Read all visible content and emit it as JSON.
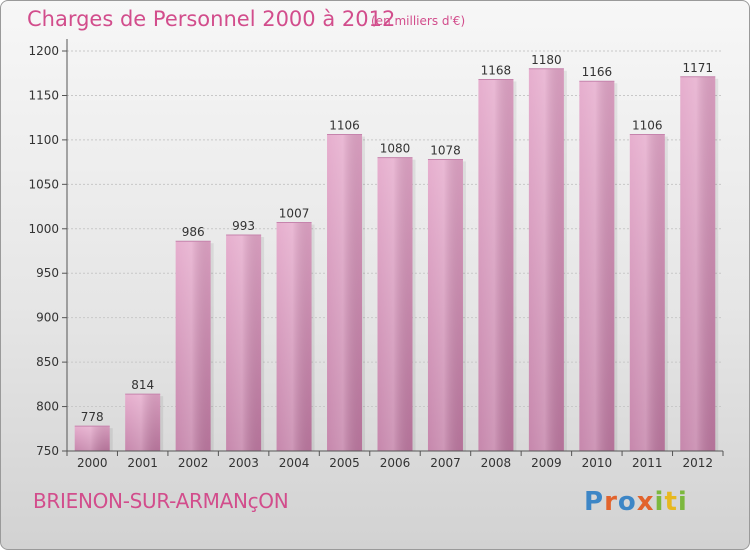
{
  "header": {
    "title": "Charges de Personnel 2000 à 2012",
    "subtitle": "(en milliers d'€)"
  },
  "footer": {
    "commune": "BRIENON-SUR-ARMANçON",
    "logo_text": "Proxiti"
  },
  "colors": {
    "accent": "#d24d8c",
    "bar": "#d98fbb",
    "bar_light": "#e6a8cb",
    "bar_dark": "#bf6d9f"
  },
  "chart_data": {
    "type": "bar",
    "categories": [
      "2000",
      "2001",
      "2002",
      "2003",
      "2004",
      "2005",
      "2006",
      "2007",
      "2008",
      "2009",
      "2010",
      "2011",
      "2012"
    ],
    "values": [
      778,
      814,
      986,
      993,
      1007,
      1106,
      1080,
      1078,
      1168,
      1180,
      1166,
      1106,
      1171
    ],
    "ylim": [
      750,
      1200
    ],
    "yticks": [
      750,
      800,
      850,
      900,
      950,
      1000,
      1050,
      1100,
      1150,
      1200
    ],
    "grid": true,
    "data_labels": true
  }
}
